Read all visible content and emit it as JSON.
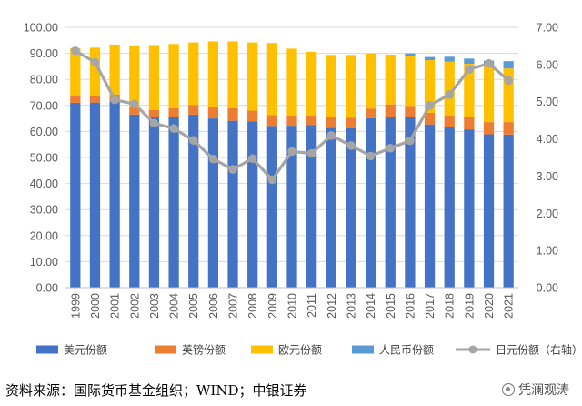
{
  "chart_data": {
    "type": "bar",
    "stacked": true,
    "categories": [
      "1999",
      "2000",
      "2001",
      "2002",
      "2003",
      "2004",
      "2005",
      "2006",
      "2007",
      "2008",
      "2009",
      "2010",
      "2011",
      "2012",
      "2013",
      "2014",
      "2015",
      "2016",
      "2017",
      "2018",
      "2019",
      "2020",
      "2021"
    ],
    "series": [
      {
        "name": "美元份额",
        "axis": "left",
        "color": "#4472C4",
        "values": [
          71.0,
          71.1,
          71.5,
          66.5,
          65.4,
          65.5,
          66.5,
          65.0,
          64.1,
          63.8,
          62.1,
          62.2,
          62.4,
          61.4,
          61.2,
          65.1,
          65.7,
          65.4,
          62.7,
          61.7,
          60.8,
          58.9,
          58.8
        ]
      },
      {
        "name": "英镑份额",
        "axis": "left",
        "color": "#ED7D31",
        "values": [
          2.9,
          2.8,
          2.7,
          2.9,
          2.8,
          3.4,
          3.6,
          4.5,
          4.8,
          4.2,
          4.2,
          3.9,
          3.8,
          4.0,
          4.0,
          3.7,
          4.7,
          4.4,
          4.5,
          4.4,
          4.6,
          4.7,
          4.8
        ]
      },
      {
        "name": "欧元份额",
        "axis": "left",
        "color": "#FFC000",
        "values": [
          18.1,
          18.3,
          19.2,
          23.7,
          25.0,
          24.7,
          24.1,
          25.1,
          25.7,
          26.2,
          27.7,
          25.7,
          24.4,
          24.0,
          24.2,
          21.2,
          19.1,
          19.1,
          20.2,
          20.7,
          20.6,
          21.3,
          20.6
        ]
      },
      {
        "name": "人民币份额",
        "axis": "left",
        "color": "#5B9BD5",
        "values": [
          0,
          0,
          0,
          0,
          0,
          0,
          0,
          0,
          0,
          0,
          0,
          0,
          0,
          0,
          0,
          0,
          0,
          1.1,
          1.2,
          1.9,
          2.0,
          2.3,
          2.8
        ]
      },
      {
        "name": "日元份额",
        "axis": "right",
        "type": "line",
        "color": "#A5A5A5",
        "values": [
          6.37,
          6.06,
          5.05,
          4.94,
          4.42,
          4.28,
          3.96,
          3.46,
          3.18,
          3.47,
          2.9,
          3.66,
          3.61,
          4.09,
          3.82,
          3.54,
          3.75,
          3.95,
          4.9,
          5.19,
          5.87,
          6.03,
          5.57
        ]
      }
    ],
    "left_axis": {
      "ylim": [
        0,
        100
      ],
      "ticks": [
        "0.00",
        "10.00",
        "20.00",
        "30.00",
        "40.00",
        "50.00",
        "60.00",
        "70.00",
        "80.00",
        "90.00",
        "100.00"
      ]
    },
    "right_axis": {
      "ylim": [
        0,
        7
      ],
      "ticks": [
        "0.00",
        "1.00",
        "2.00",
        "3.00",
        "4.00",
        "5.00",
        "6.00",
        "7.00"
      ]
    },
    "grid": true,
    "legend": {
      "position": "bottom",
      "entries": [
        "美元份额",
        "英镑份额",
        "欧元份额",
        "人民币份额",
        "日元份额（右轴）"
      ]
    }
  },
  "footer": {
    "source": "资料来源：国际货币基金组织；WIND；中银证券",
    "watermark": "凭澜观涛"
  }
}
